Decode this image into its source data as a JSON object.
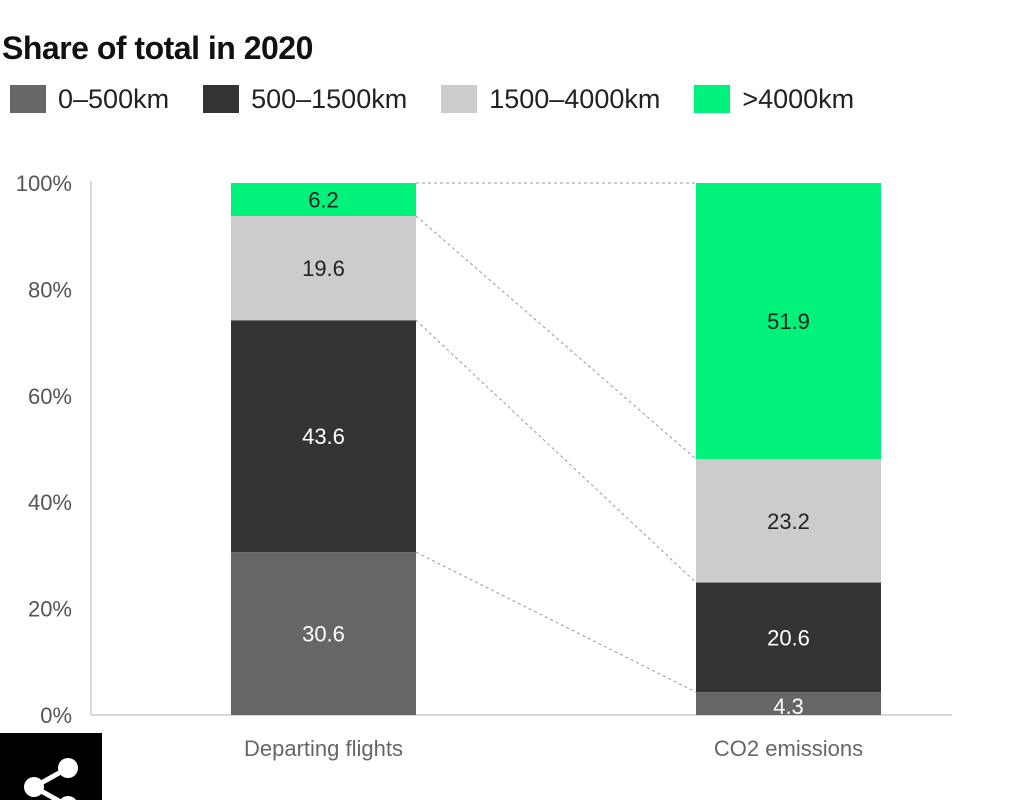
{
  "chart_data": {
    "type": "bar",
    "stacked": true,
    "title": "Share of total in 2020",
    "categories": [
      "Departing flights",
      "CO2 emissions"
    ],
    "series": [
      {
        "name": "0–500km",
        "color": "#666666",
        "label_color": "#ffffff",
        "values": [
          30.6,
          4.3
        ]
      },
      {
        "name": "500–1500km",
        "color": "#333333",
        "label_color": "#ffffff",
        "values": [
          43.6,
          20.6
        ]
      },
      {
        "name": "1500–4000km",
        "color": "#cccccc",
        "label_color": "#222222",
        "values": [
          19.6,
          23.2
        ]
      },
      {
        "name": ">4000km",
        "color": "#00f27a",
        "label_color": "#222222",
        "values": [
          6.2,
          51.9
        ]
      }
    ],
    "data_labels": [
      [
        "30.6",
        "4.3"
      ],
      [
        "43.6",
        "20.6"
      ],
      [
        "19.6",
        "23.2"
      ],
      [
        "6.2",
        "51.9"
      ]
    ],
    "y_ticks": [
      0,
      20,
      40,
      60,
      80,
      100
    ],
    "y_tick_labels": [
      "0%",
      "20%",
      "40%",
      "60%",
      "80%",
      "100%"
    ],
    "ylim": [
      0,
      100
    ],
    "xlabel": "",
    "ylabel": "",
    "legend_position": "top-left",
    "connector_lines": true,
    "grid": false
  },
  "share": {
    "icon": "share-icon"
  }
}
